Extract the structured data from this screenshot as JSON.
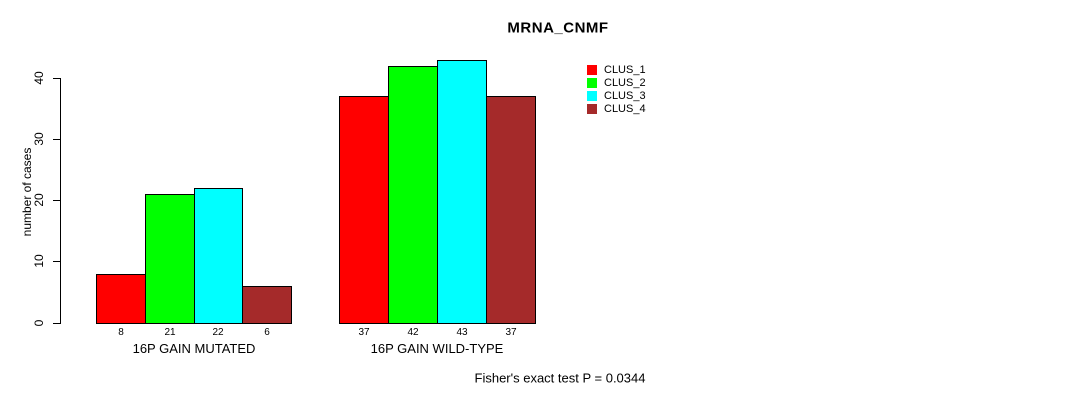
{
  "figure": {
    "background": "#FFFFFF",
    "axis_color": "#000000",
    "text_color": "#000000"
  },
  "chart_data": {
    "type": "bar",
    "title": "MRNA_CNMF",
    "xlabel": "",
    "ylabel": "number of cases",
    "ylim": [
      0,
      40
    ],
    "yticks": [
      "0",
      "10",
      "20",
      "30",
      "40"
    ],
    "grid": false,
    "legend_position": "top-right",
    "categories": [
      "16P GAIN MUTATED",
      "16P GAIN WILD-TYPE"
    ],
    "series": [
      {
        "name": "CLUS_1",
        "color": "#FF0000",
        "values": [
          8,
          37
        ]
      },
      {
        "name": "CLUS_2",
        "color": "#00FF00",
        "values": [
          21,
          42
        ]
      },
      {
        "name": "CLUS_3",
        "color": "#00FFFF",
        "values": [
          22,
          43
        ]
      },
      {
        "name": "CLUS_4",
        "color": "#A52A2A",
        "values": [
          6,
          37
        ]
      }
    ],
    "bar_value_labels": [
      [
        "8",
        "21",
        "22",
        "6"
      ],
      [
        "37",
        "42",
        "43",
        "37"
      ]
    ],
    "annotation": "Fisher's exact test P = 0.0344"
  }
}
